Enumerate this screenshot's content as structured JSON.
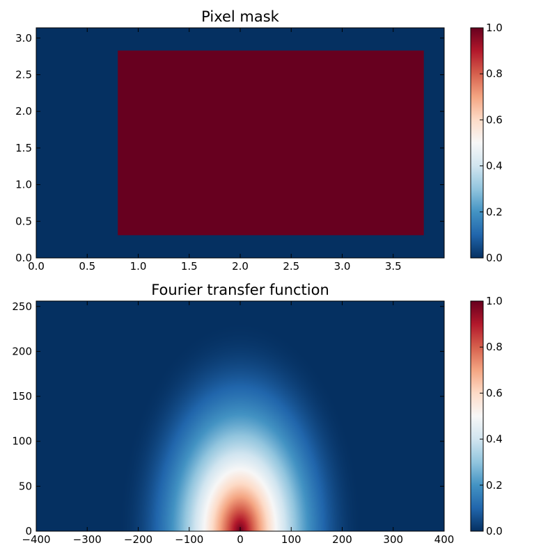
{
  "chart_data": [
    {
      "type": "heatmap",
      "title": "Pixel mask",
      "xlabel": "",
      "ylabel": "",
      "xlim": [
        0.0,
        4.0
      ],
      "ylim": [
        0.0,
        3.14
      ],
      "xticks": [
        0.0,
        0.5,
        1.0,
        1.5,
        2.0,
        2.5,
        3.0,
        3.5
      ],
      "xtick_labels": [
        "0.0",
        "0.5",
        "1.0",
        "1.5",
        "2.0",
        "2.5",
        "3.0",
        "3.5"
      ],
      "yticks": [
        0.0,
        0.5,
        1.0,
        1.5,
        2.0,
        2.5,
        3.0
      ],
      "ytick_labels": [
        "0.0",
        "0.5",
        "1.0",
        "1.5",
        "2.0",
        "2.5",
        "3.0"
      ],
      "background_value": 0.0,
      "regions": [
        {
          "value": 1.0,
          "x0": 0.8,
          "x1": 3.8,
          "y0": 0.31,
          "y1": 2.83
        }
      ],
      "colorbar": {
        "range": [
          0.0,
          1.0
        ],
        "ticks": [
          0.0,
          0.2,
          0.4,
          0.6,
          0.8,
          1.0
        ],
        "tick_labels": [
          "0.0",
          "0.2",
          "0.4",
          "0.6",
          "0.8",
          "1.0"
        ]
      },
      "colormap": "RdBu_r",
      "grid": false
    },
    {
      "type": "heatmap",
      "title": "Fourier transfer function",
      "xlabel": "",
      "ylabel": "",
      "xlim": [
        -400,
        400
      ],
      "ylim": [
        0,
        256
      ],
      "xticks": [
        -400,
        -300,
        -200,
        -100,
        0,
        100,
        200,
        300,
        400
      ],
      "xtick_labels": [
        "−400",
        "−300",
        "−200",
        "−100",
        "0",
        "100",
        "200",
        "300",
        "400"
      ],
      "yticks": [
        0,
        50,
        100,
        150,
        200,
        250
      ],
      "ytick_labels": [
        "0",
        "50",
        "100",
        "150",
        "200",
        "250"
      ],
      "function": "max(0, 1 - sqrt((x/240)^2 + (y/235)^2))^2",
      "peak": {
        "x": 0,
        "y": 0,
        "value": 1.0
      },
      "zero_radius": {
        "x": 240,
        "y": 235
      },
      "colorbar": {
        "range": [
          0.0,
          1.0
        ],
        "ticks": [
          0.0,
          0.2,
          0.4,
          0.6,
          0.8,
          1.0
        ],
        "tick_labels": [
          "0.0",
          "0.2",
          "0.4",
          "0.6",
          "0.8",
          "1.0"
        ]
      },
      "colormap": "RdBu_r",
      "grid": false
    }
  ],
  "colors": {
    "cmap_stops": [
      [
        0.0,
        "#053061"
      ],
      [
        0.1,
        "#2166ac"
      ],
      [
        0.2,
        "#4393c3"
      ],
      [
        0.3,
        "#92c5de"
      ],
      [
        0.4,
        "#d1e5f0"
      ],
      [
        0.5,
        "#f7f7f7"
      ],
      [
        0.6,
        "#fddbc7"
      ],
      [
        0.7,
        "#f4a582"
      ],
      [
        0.8,
        "#d6604d"
      ],
      [
        0.9,
        "#b2182b"
      ],
      [
        1.0,
        "#67001f"
      ]
    ]
  }
}
